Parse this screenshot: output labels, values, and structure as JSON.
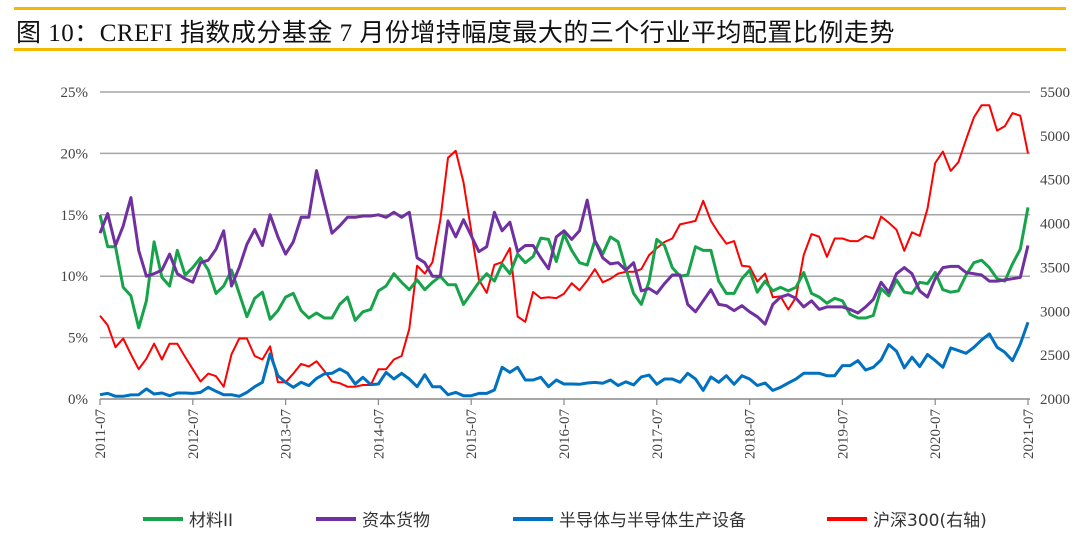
{
  "title": "图 10：CREFI 指数成分基金 7 月份增持幅度最大的三个行业平均配置比例走势",
  "chart_data": {
    "type": "line",
    "x_range": [
      "2011-07",
      "2021-07"
    ],
    "x_frequency": "monthly",
    "x_ticks": [
      "2011-07",
      "2012-07",
      "2013-07",
      "2014-07",
      "2015-07",
      "2016-07",
      "2017-07",
      "2018-07",
      "2019-07",
      "2020-07",
      "2021-07"
    ],
    "y_left": {
      "ticks": [
        "0%",
        "5%",
        "10%",
        "15%",
        "20%",
        "25%"
      ],
      "range": [
        0,
        25
      ]
    },
    "y_right": {
      "ticks": [
        "2000",
        "2500",
        "3000",
        "3500",
        "4000",
        "4500",
        "5000",
        "5500"
      ],
      "range": [
        2000,
        5500
      ]
    },
    "grid": "horizontal",
    "legend_position": "bottom",
    "series": [
      {
        "name": "材料II",
        "axis": "left",
        "color": "#17a34a",
        "values": [
          15.0,
          12.4,
          12.4,
          9.1,
          8.4,
          5.8,
          8.0,
          12.8,
          9.9,
          9.2,
          12.1,
          10.1,
          10.7,
          11.5,
          10.5,
          8.6,
          9.2,
          10.5,
          8.6,
          6.7,
          8.2,
          8.7,
          6.5,
          7.2,
          8.3,
          8.6,
          7.2,
          6.6,
          7.0,
          6.6,
          6.6,
          7.7,
          8.3,
          6.4,
          7.1,
          7.3,
          8.8,
          9.2,
          10.2,
          9.5,
          8.9,
          9.7,
          8.9,
          9.5,
          10.0,
          9.3,
          9.3,
          7.7,
          8.6,
          9.5,
          10.2,
          9.6,
          11.0,
          10.2,
          11.8,
          11.1,
          11.6,
          13.1,
          13.0,
          11.2,
          13.4,
          12.1,
          11.1,
          10.9,
          12.9,
          11.8,
          13.2,
          12.8,
          10.6,
          8.6,
          7.7,
          9.6,
          13.0,
          12.5,
          10.7,
          10.0,
          10.1,
          12.4,
          12.1,
          12.1,
          9.6,
          8.6,
          8.6,
          9.8,
          10.5,
          8.7,
          9.6,
          8.8,
          9.1,
          8.8,
          9.1,
          10.3,
          8.6,
          8.3,
          7.8,
          8.2,
          8.0,
          6.9,
          6.6,
          6.6,
          6.8,
          9.0,
          8.4,
          9.7,
          8.7,
          8.6,
          9.5,
          9.4,
          10.3,
          8.9,
          8.7,
          8.8,
          10.1,
          11.1,
          11.3,
          10.7,
          9.8,
          9.6,
          11.0,
          12.2,
          15.6
        ]
      },
      {
        "name": "资本货物",
        "axis": "left",
        "color": "#7030a0",
        "values": [
          13.5,
          15.1,
          12.5,
          14.1,
          16.4,
          12.1,
          10.0,
          10.2,
          10.5,
          11.8,
          10.2,
          9.8,
          9.5,
          11.1,
          11.3,
          12.2,
          13.7,
          9.2,
          10.7,
          12.6,
          13.8,
          12.5,
          15.0,
          13.2,
          11.8,
          12.8,
          14.8,
          14.8,
          18.6,
          16.0,
          13.5,
          14.1,
          14.8,
          14.8,
          14.9,
          14.9,
          15.0,
          14.8,
          15.2,
          14.8,
          15.2,
          11.5,
          11.1,
          10.0,
          10.0,
          14.5,
          13.2,
          14.6,
          13.3,
          12.0,
          12.4,
          15.2,
          13.7,
          14.4,
          12.0,
          12.5,
          12.5,
          11.5,
          10.6,
          13.2,
          13.7,
          13.0,
          13.7,
          16.2,
          12.9,
          11.5,
          11.0,
          11.1,
          10.5,
          11.1,
          8.8,
          9.0,
          8.6,
          9.4,
          10.1,
          10.1,
          7.7,
          7.1,
          8.0,
          8.9,
          7.7,
          7.6,
          7.2,
          7.6,
          7.1,
          6.7,
          6.1,
          7.7,
          8.3,
          8.5,
          8.2,
          7.5,
          8.0,
          7.3,
          7.5,
          7.5,
          7.5,
          7.3,
          7.0,
          7.5,
          8.1,
          9.5,
          8.7,
          10.2,
          10.7,
          10.2,
          8.8,
          8.3,
          9.8,
          10.7,
          10.8,
          10.8,
          10.3,
          10.2,
          10.1,
          9.6,
          9.6,
          9.7,
          9.8,
          9.9,
          12.5
        ]
      },
      {
        "name": "半导体与半导体生产设备",
        "axis": "left",
        "color": "#0070c0",
        "values": [
          0.35,
          0.46,
          0.22,
          0.22,
          0.33,
          0.35,
          0.82,
          0.41,
          0.49,
          0.27,
          0.49,
          0.49,
          0.46,
          0.54,
          0.95,
          0.63,
          0.35,
          0.35,
          0.22,
          0.54,
          1.0,
          1.36,
          3.67,
          1.9,
          1.36,
          0.95,
          1.36,
          1.09,
          1.68,
          2.04,
          2.09,
          2.45,
          2.1,
          1.22,
          1.77,
          1.17,
          1.22,
          2.17,
          1.63,
          2.09,
          1.63,
          1.0,
          1.98,
          1.0,
          1.0,
          0.35,
          0.54,
          0.27,
          0.27,
          0.46,
          0.46,
          0.73,
          2.58,
          2.17,
          2.58,
          1.55,
          1.55,
          1.77,
          1.0,
          1.55,
          1.22,
          1.22,
          1.2,
          1.3,
          1.35,
          1.28,
          1.55,
          1.1,
          1.4,
          1.15,
          1.8,
          1.95,
          1.2,
          1.63,
          1.63,
          1.36,
          2.09,
          1.63,
          0.7,
          1.8,
          1.36,
          1.9,
          1.2,
          1.9,
          1.63,
          1.1,
          1.3,
          0.7,
          0.95,
          1.3,
          1.63,
          2.09,
          2.09,
          2.09,
          1.9,
          1.9,
          2.72,
          2.72,
          3.13,
          2.36,
          2.58,
          3.18,
          4.43,
          3.89,
          2.53,
          3.4,
          2.64,
          3.62,
          3.13,
          2.58,
          4.16,
          3.94,
          3.72,
          4.21,
          4.81,
          5.3,
          4.21,
          3.8,
          3.13,
          4.48,
          6.25
        ]
      },
      {
        "name": "沪深300(右轴)",
        "axis": "right",
        "color": "#ff0000",
        "values": [
          2950,
          2840,
          2590,
          2690,
          2510,
          2340,
          2460,
          2630,
          2450,
          2630,
          2630,
          2480,
          2340,
          2200,
          2290,
          2260,
          2140,
          2510,
          2690,
          2690,
          2490,
          2450,
          2600,
          2190,
          2190,
          2290,
          2400,
          2370,
          2430,
          2320,
          2200,
          2180,
          2140,
          2140,
          2160,
          2160,
          2340,
          2340,
          2450,
          2490,
          2800,
          3520,
          3430,
          3560,
          4040,
          4750,
          4830,
          4470,
          3920,
          3360,
          3210,
          3530,
          3560,
          3720,
          2940,
          2880,
          3220,
          3150,
          3160,
          3150,
          3200,
          3320,
          3240,
          3350,
          3480,
          3330,
          3370,
          3430,
          3450,
          3450,
          3480,
          3640,
          3720,
          3790,
          3830,
          3990,
          4010,
          4030,
          4260,
          4030,
          3890,
          3770,
          3800,
          3520,
          3510,
          3340,
          3430,
          3160,
          3170,
          3020,
          3160,
          3640,
          3880,
          3850,
          3620,
          3830,
          3830,
          3800,
          3800,
          3860,
          3830,
          4080,
          4010,
          3930,
          3690,
          3900,
          3860,
          4170,
          4690,
          4820,
          4600,
          4700,
          4960,
          5210,
          5350,
          5350,
          5060,
          5110,
          5260,
          5230,
          4800
        ]
      }
    ]
  }
}
